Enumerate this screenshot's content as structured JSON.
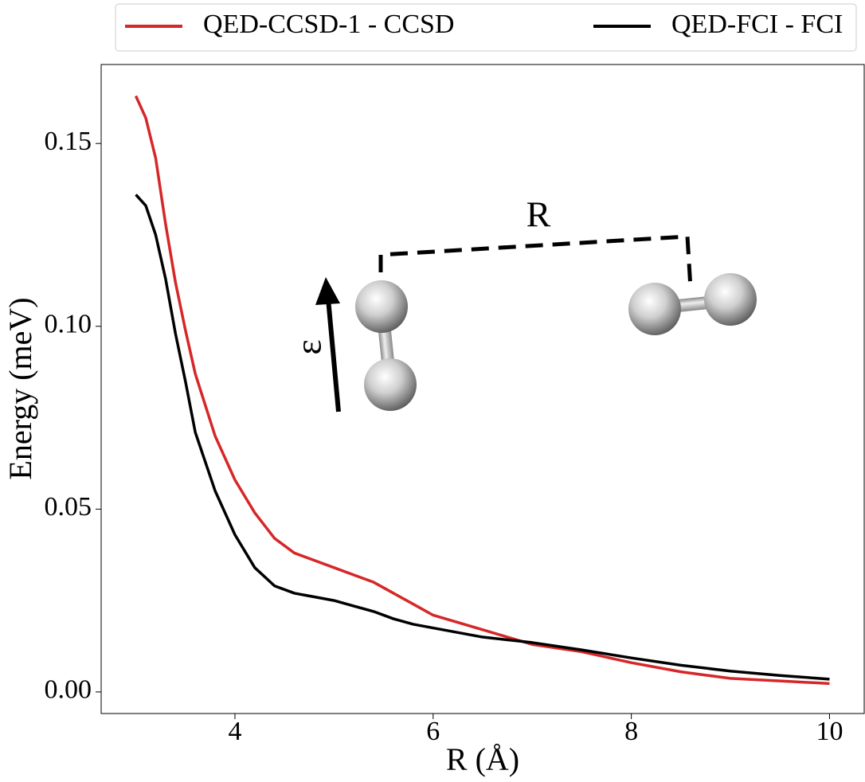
{
  "chart_data": {
    "type": "line",
    "legend": "top",
    "x_label": "R (Å)",
    "y_label": "Energy (meV)",
    "inset_labels": {
      "distance": "R",
      "field": "ε"
    },
    "x": [
      3.0,
      3.1,
      3.2,
      3.3,
      3.4,
      3.5,
      3.6,
      3.8,
      4.0,
      4.2,
      4.4,
      4.6,
      4.8,
      5.0,
      5.2,
      5.4,
      5.6,
      5.8,
      6.0,
      6.5,
      7.0,
      7.5,
      8.0,
      8.5,
      9.0,
      9.5,
      10.0
    ],
    "series": [
      {
        "name": "QED-CCSD-1 - CCSD",
        "color": "#d62728",
        "values": [
          0.163,
          0.157,
          0.146,
          0.128,
          0.112,
          0.099,
          0.087,
          0.07,
          0.058,
          0.049,
          0.042,
          0.038,
          0.036,
          0.034,
          0.032,
          0.03,
          0.027,
          0.024,
          0.021,
          0.017,
          0.013,
          0.011,
          0.008,
          0.0055,
          0.0037,
          0.003,
          0.0023
        ]
      },
      {
        "name": "QED-FCI - FCI",
        "color": "#000000",
        "values": [
          0.136,
          0.133,
          0.125,
          0.113,
          0.098,
          0.085,
          0.071,
          0.055,
          0.043,
          0.034,
          0.029,
          0.027,
          0.026,
          0.025,
          0.0235,
          0.022,
          0.02,
          0.0185,
          0.0175,
          0.015,
          0.0135,
          0.0115,
          0.0093,
          0.0073,
          0.0057,
          0.0045,
          0.0035
        ]
      }
    ],
    "xlim": [
      2.65,
      10.35
    ],
    "ylim": [
      -0.0059,
      0.1716
    ],
    "xticks": [
      4,
      6,
      8,
      10
    ],
    "yticks": [
      {
        "value": 0,
        "label": "0.00"
      },
      0.05,
      {
        "value": 0.1,
        "label": "0.10"
      },
      0.15
    ]
  }
}
